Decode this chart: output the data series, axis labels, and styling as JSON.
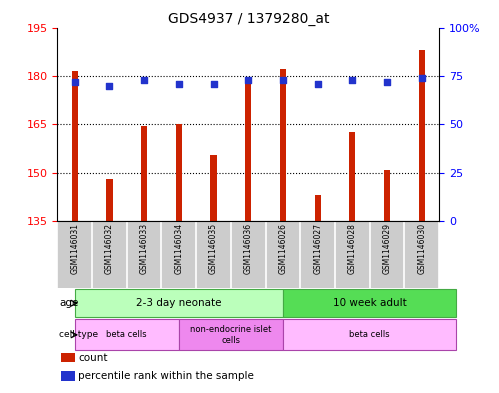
{
  "title": "GDS4937 / 1379280_at",
  "samples": [
    "GSM1146031",
    "GSM1146032",
    "GSM1146033",
    "GSM1146034",
    "GSM1146035",
    "GSM1146036",
    "GSM1146026",
    "GSM1146027",
    "GSM1146028",
    "GSM1146029",
    "GSM1146030"
  ],
  "counts": [
    181.5,
    148.0,
    164.5,
    165.0,
    155.5,
    179.0,
    182.0,
    143.0,
    162.5,
    151.0,
    188.0
  ],
  "percentiles": [
    72,
    70,
    73,
    71,
    71,
    73,
    73,
    71,
    73,
    72,
    74
  ],
  "ylim_left": [
    135,
    195
  ],
  "ylim_right": [
    0,
    100
  ],
  "yticks_left": [
    135,
    150,
    165,
    180,
    195
  ],
  "yticks_right": [
    0,
    25,
    50,
    75,
    100
  ],
  "ytick_labels_right": [
    "0",
    "25",
    "50",
    "75",
    "100%"
  ],
  "bar_color": "#cc2200",
  "dot_color": "#2233cc",
  "bar_bottom": 135,
  "bar_width": 0.18,
  "age_groups": [
    {
      "label": "2-3 day neonate",
      "start": 0,
      "end": 6,
      "color": "#bbffbb",
      "edge": "#44aa44"
    },
    {
      "label": "10 week adult",
      "start": 6,
      "end": 11,
      "color": "#55dd55",
      "edge": "#44aa44"
    }
  ],
  "cell_type_groups": [
    {
      "label": "beta cells",
      "start": 0,
      "end": 3,
      "color": "#ffbbff",
      "edge": "#aa44aa"
    },
    {
      "label": "non-endocrine islet\ncells",
      "start": 3,
      "end": 6,
      "color": "#ee88ee",
      "edge": "#aa44aa"
    },
    {
      "label": "beta cells",
      "start": 6,
      "end": 11,
      "color": "#ffbbff",
      "edge": "#aa44aa"
    }
  ],
  "legend_items": [
    {
      "color": "#cc2200",
      "label": "count"
    },
    {
      "color": "#2233cc",
      "label": "percentile rank within the sample"
    }
  ],
  "sample_box_color": "#cccccc",
  "sample_box_edge": "#aaaaaa",
  "background_color": "#ffffff"
}
